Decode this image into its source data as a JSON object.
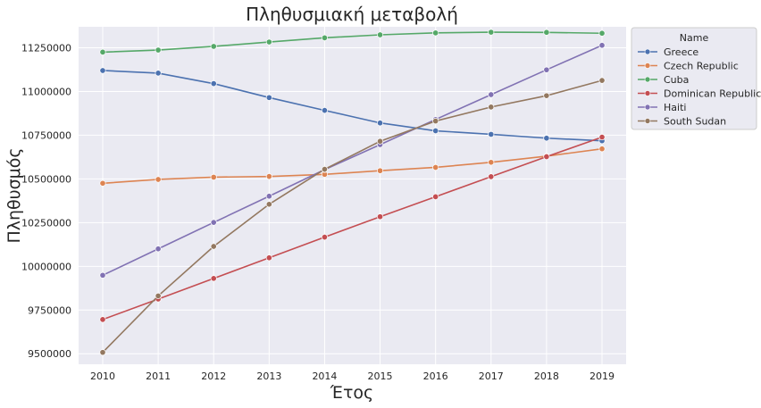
{
  "chart_data": {
    "type": "line",
    "title": "Πληθυσμιακή μεταβολή",
    "xlabel": "Έτος",
    "ylabel": "Πληθυσμός",
    "x": [
      2010,
      2011,
      2012,
      2013,
      2014,
      2015,
      2016,
      2017,
      2018,
      2019
    ],
    "ylim": [
      9440000,
      11370000
    ],
    "yticks": [
      9500000,
      9750000,
      10000000,
      10250000,
      10500000,
      10750000,
      11000000,
      11250000
    ],
    "grid": true,
    "legend": {
      "title": "Name",
      "placement": "outside-top-right"
    },
    "series": [
      {
        "name": "Greece",
        "color": "#4c72b0",
        "values": [
          11120000,
          11105000,
          11045000,
          10965000,
          10892000,
          10820000,
          10775000,
          10755000,
          10733000,
          10718000
        ]
      },
      {
        "name": "Czech Republic",
        "color": "#dd8452",
        "values": [
          10475000,
          10497000,
          10510000,
          10514000,
          10526000,
          10547000,
          10566000,
          10595000,
          10630000,
          10672000
        ]
      },
      {
        "name": "Cuba",
        "color": "#55a868",
        "values": [
          11225000,
          11237000,
          11258000,
          11283000,
          11307000,
          11324000,
          11335000,
          11339000,
          11338000,
          11333000
        ]
      },
      {
        "name": "Dominican Republic",
        "color": "#c44e52",
        "values": [
          9696000,
          9813000,
          9931000,
          10049000,
          10167000,
          10284000,
          10398000,
          10513000,
          10627000,
          10739000
        ]
      },
      {
        "name": "Haiti",
        "color": "#8172b3",
        "values": [
          9949000,
          10100000,
          10251000,
          10401000,
          10553000,
          10696000,
          10840000,
          10982000,
          11124000,
          11264000
        ]
      },
      {
        "name": "South Sudan",
        "color": "#937860",
        "values": [
          9508000,
          9831000,
          10114000,
          10355000,
          10555000,
          10715000,
          10831000,
          10911000,
          10976000,
          11063000
        ]
      }
    ]
  }
}
